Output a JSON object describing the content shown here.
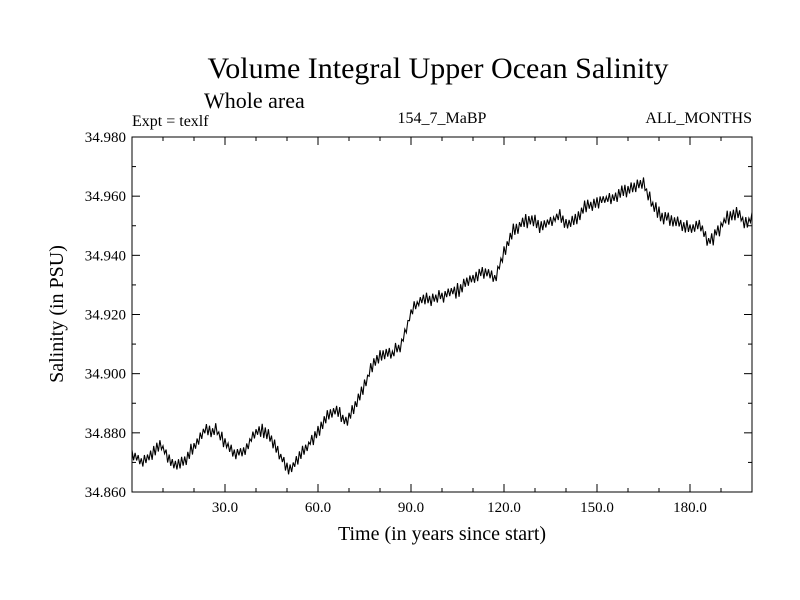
{
  "chart_data": {
    "type": "line",
    "title": "Volume Integral Upper Ocean Salinity",
    "subtitle": "Whole area",
    "experiment_label": "Expt = texlf",
    "run_label": "154_7_MaBP",
    "months_label": "ALL_MONTHS",
    "xlabel": "Time (in years since start)",
    "ylabel": "Salinity (in PSU)",
    "xlim": [
      0,
      200
    ],
    "ylim": [
      34.86,
      34.98
    ],
    "x_ticks": [
      30,
      60,
      90,
      120,
      150,
      180
    ],
    "x_tick_labels": [
      "30.0",
      "60.0",
      "90.0",
      "120.0",
      "150.0",
      "180.0"
    ],
    "y_ticks": [
      34.86,
      34.88,
      34.9,
      34.92,
      34.94,
      34.96,
      34.98
    ],
    "y_tick_labels": [
      "34.860",
      "34.880",
      "34.900",
      "34.920",
      "34.940",
      "34.960",
      "34.980"
    ],
    "series": [
      {
        "name": "Salinity",
        "annual_noise_amplitude": 0.0018,
        "x": [
          0,
          3,
          6,
          9,
          12,
          15,
          18,
          21,
          24,
          27,
          30,
          33,
          36,
          39,
          42,
          45,
          48,
          51,
          54,
          57,
          60,
          63,
          66,
          69,
          72,
          75,
          78,
          81,
          84,
          87,
          90,
          93,
          96,
          99,
          102,
          105,
          108,
          111,
          114,
          117,
          120,
          123,
          126,
          129,
          132,
          135,
          138,
          141,
          144,
          147,
          150,
          153,
          156,
          159,
          162,
          165,
          168,
          171,
          174,
          177,
          180,
          183,
          186,
          189,
          192,
          195,
          198,
          200
        ],
        "values": [
          34.8725,
          34.87,
          34.873,
          34.876,
          34.871,
          34.869,
          34.872,
          34.877,
          34.881,
          34.881,
          34.877,
          34.873,
          34.873,
          34.879,
          34.881,
          34.878,
          34.872,
          34.867,
          34.872,
          34.876,
          34.881,
          34.885,
          34.888,
          34.883,
          34.889,
          34.896,
          34.904,
          34.907,
          34.907,
          34.91,
          34.921,
          34.925,
          34.925,
          34.926,
          34.927,
          34.928,
          34.931,
          34.933,
          34.935,
          34.932,
          34.941,
          34.948,
          34.951,
          34.952,
          34.95,
          34.952,
          34.953,
          34.95,
          34.953,
          34.957,
          34.958,
          34.959,
          34.96,
          34.962,
          34.963,
          34.964,
          34.957,
          34.953,
          34.952,
          34.95,
          34.949,
          34.951,
          34.944,
          34.948,
          34.953,
          34.954,
          34.951,
          34.952
        ]
      }
    ]
  }
}
